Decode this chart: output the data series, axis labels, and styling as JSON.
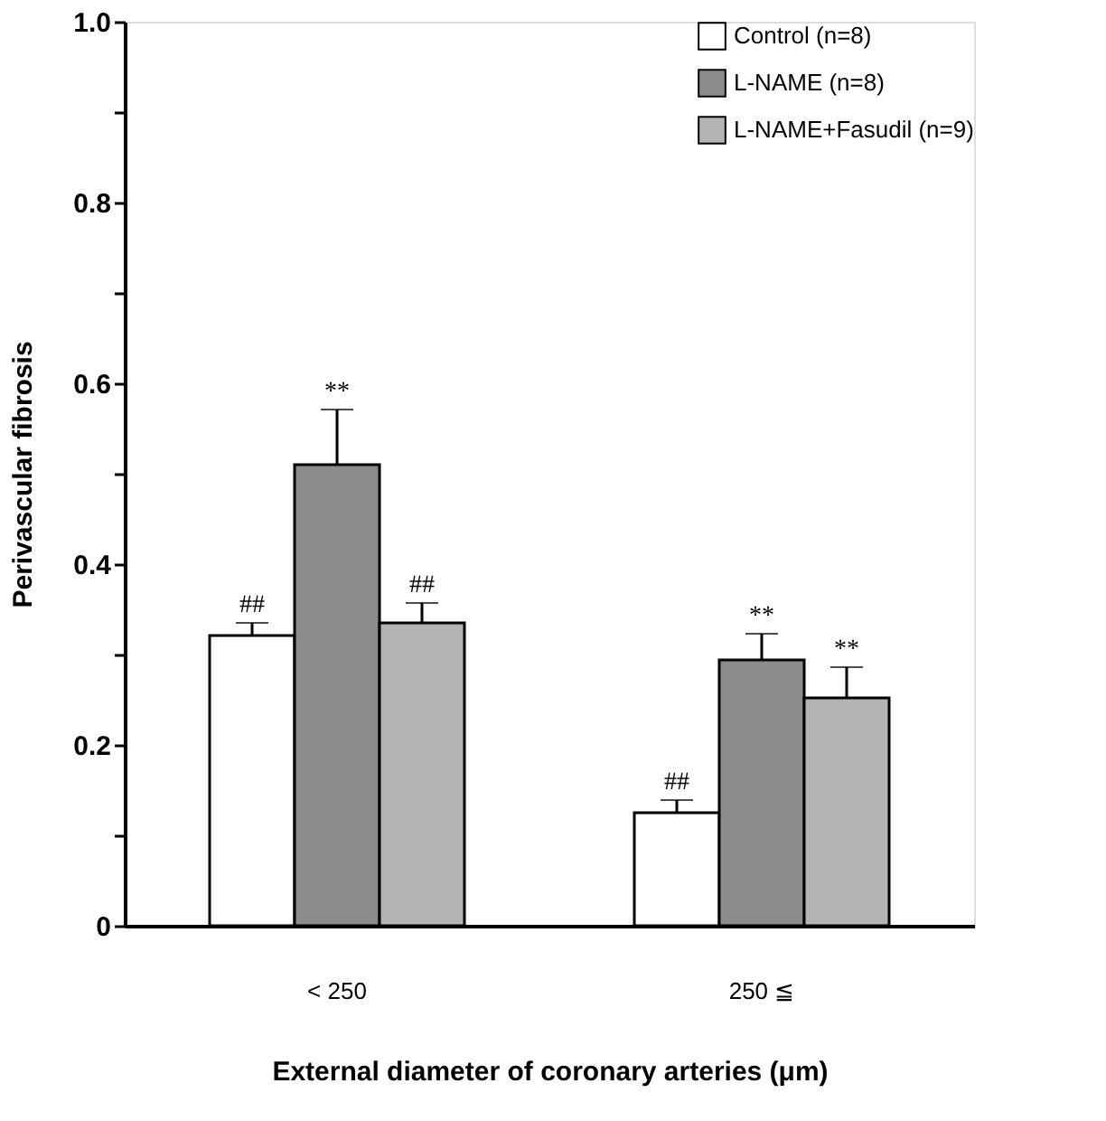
{
  "chart_data": {
    "type": "bar",
    "xlabel": "External diameter of coronary arteries (μm)",
    "ylabel": "Perivascular fibrosis",
    "categories": [
      "< 250",
      "250 ≦"
    ],
    "series": [
      {
        "name": "Control  (n=8)",
        "color": "#ffffff",
        "values": [
          0.321,
          0.125
        ],
        "errors": [
          [
            0.321,
            0.335
          ],
          [
            0.125,
            0.139
          ]
        ],
        "value_labels": [
          "##",
          "##"
        ]
      },
      {
        "name": "L-NAME (n=8)",
        "color": "#8c8c8c",
        "values": [
          0.51,
          0.294
        ],
        "errors": [
          [
            0.51,
            0.571
          ],
          [
            0.294,
            0.323
          ]
        ],
        "value_labels": [
          "**",
          "**"
        ]
      },
      {
        "name": "L-NAME+Fasudil (n=9)",
        "color": "#b4b4b4",
        "values": [
          0.335,
          0.252
        ],
        "errors": [
          [
            0.335,
            0.357
          ],
          [
            0.252,
            0.286
          ]
        ],
        "value_labels": [
          "##",
          "**"
        ]
      }
    ],
    "ylim": [
      0,
      1.0
    ],
    "yticks": [
      0,
      {
        "value": 0.1,
        "label": null
      },
      0.2,
      {
        "value": 0.3,
        "label": null
      },
      0.4,
      {
        "value": 0.5,
        "label": null
      },
      0.6,
      {
        "value": 0.7,
        "label": null
      },
      0.8,
      {
        "value": 0.9,
        "label": null
      },
      {
        "value": 1.0,
        "label": "1.0"
      }
    ],
    "grid": false,
    "legend": "top right"
  }
}
